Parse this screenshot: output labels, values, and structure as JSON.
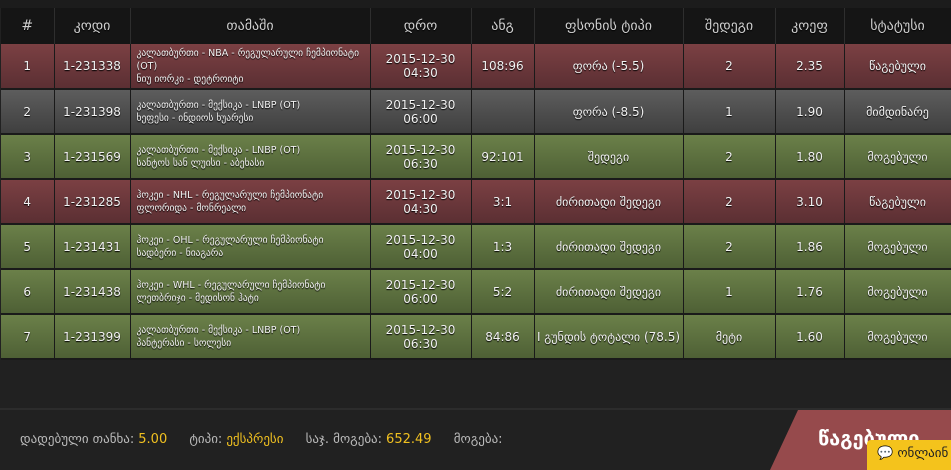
{
  "columns": [
    "#",
    "კოდი",
    "თამაში",
    "დრო",
    "ანგ",
    "ფსონის ტიპი",
    "შედეგი",
    "კოეფ",
    "სტატუსი"
  ],
  "rows": [
    {
      "n": "1",
      "code": "1-231338",
      "league": "კალათბურთი - NBA - რეგულარული ჩემპიონატი (OT)",
      "match": "ნიუ იორკი - დეტროიტი",
      "date": "2015-12-30 04:30",
      "score": "108:96",
      "bet": "ფორა (-5.5)",
      "outcome": "2",
      "odds": "2.35",
      "status": "წაგებული",
      "state": "lost"
    },
    {
      "n": "2",
      "code": "1-231398",
      "league": "კალათბურთი - მექსიკა - LNBP (OT)",
      "match": "ხეფესი - ინდიოს ხუარესი",
      "date": "2015-12-30 06:00",
      "score": "",
      "bet": "ფორა (-8.5)",
      "outcome": "1",
      "odds": "1.90",
      "status": "მიმდინარე",
      "state": "pending"
    },
    {
      "n": "3",
      "code": "1-231569",
      "league": "კალათბურთი - მექსიკა - LNBP (OT)",
      "match": "სანტოს სან ლუისი - აბეხასი",
      "date": "2015-12-30 06:30",
      "score": "92:101",
      "bet": "შედეგი",
      "outcome": "2",
      "odds": "1.80",
      "status": "მოგებული",
      "state": "won"
    },
    {
      "n": "4",
      "code": "1-231285",
      "league": "ჰოკეი - NHL - რეგულარული ჩემპიონატი",
      "match": "ფლორიდა - მონრეალი",
      "date": "2015-12-30 04:30",
      "score": "3:1",
      "bet": "ძირითადი შედეგი",
      "outcome": "2",
      "odds": "3.10",
      "status": "წაგებული",
      "state": "lost"
    },
    {
      "n": "5",
      "code": "1-231431",
      "league": "ჰოკეი - OHL - რეგულარული ჩემპიონატი",
      "match": "სადბერი - ნიაგარა",
      "date": "2015-12-30 04:00",
      "score": "1:3",
      "bet": "ძირითადი შედეგი",
      "outcome": "2",
      "odds": "1.86",
      "status": "მოგებული",
      "state": "won"
    },
    {
      "n": "6",
      "code": "1-231438",
      "league": "ჰოკეი - WHL - რეგულარული ჩემპიონატი",
      "match": "ლეთბრიჯი - მედისონ ჰატი",
      "date": "2015-12-30 06:00",
      "score": "5:2",
      "bet": "ძირითადი შედეგი",
      "outcome": "1",
      "odds": "1.76",
      "status": "მოგებული",
      "state": "won"
    },
    {
      "n": "7",
      "code": "1-231399",
      "league": "კალათბურთი - მექსიკა - LNBP (OT)",
      "match": "პანტერასი - სოლესი",
      "date": "2015-12-30 06:30",
      "score": "84:86",
      "bet": "I გუნდის ტოტალი (78.5)",
      "outcome": "მეტი",
      "odds": "1.60",
      "status": "მოგებული",
      "state": "won"
    }
  ],
  "footer": {
    "stake_label": "დადებული თანხა:",
    "stake": "5.00",
    "type_label": "ტიპი:",
    "type": "ექსპრესი",
    "possible_label": "საჯ. მოგება:",
    "possible": "652.49",
    "win_label": "მოგება:"
  },
  "result_button": "წაგებული",
  "chat_label": "ონლაინ",
  "colors": {
    "lost": "#7b4043",
    "pending": "#5d5d5d",
    "won": "#6b8049",
    "accent": "#f0c020"
  }
}
